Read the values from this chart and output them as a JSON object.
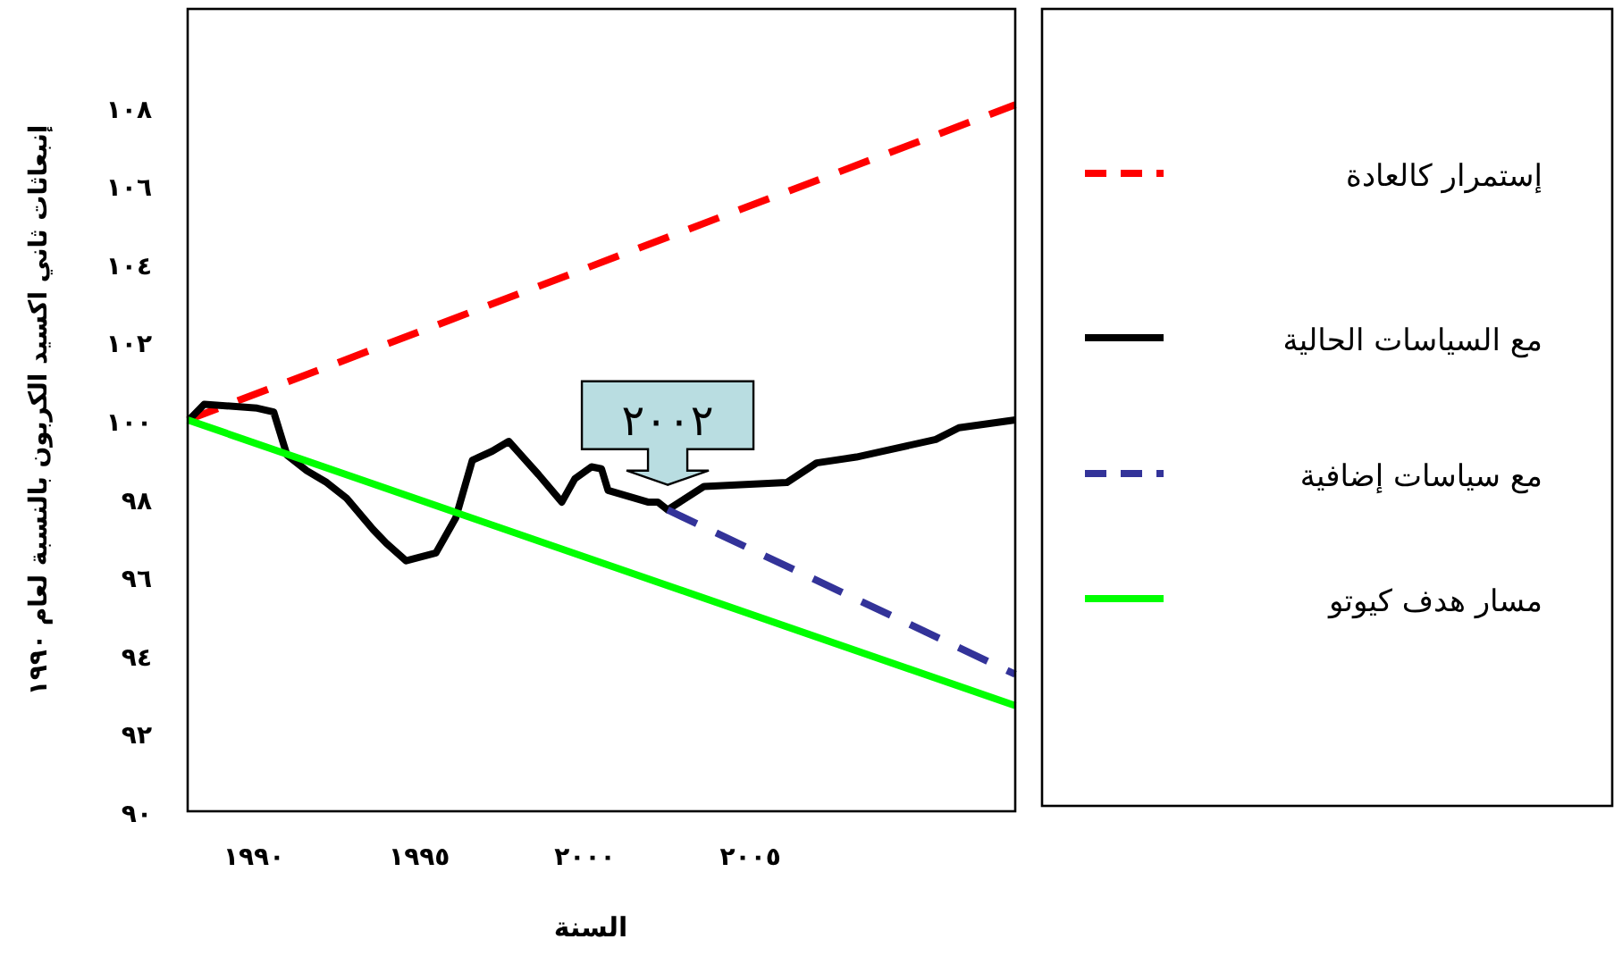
{
  "chart_data": {
    "type": "line",
    "xlabel": "السنة",
    "ylabel": "إنبعاثات ثاني اكسيد الكربون بالنسبة لعام ١٩٩٠",
    "xlim": [
      1988,
      2013
    ],
    "ylim": [
      90,
      110.5
    ],
    "xticks": [
      {
        "value": 1990,
        "label": "١٩٩٠"
      },
      {
        "value": 1995,
        "label": "١٩٩٥"
      },
      {
        "value": 2000,
        "label": "٢٠٠٠"
      },
      {
        "value": 2005,
        "label": "٢٠٠٥"
      }
    ],
    "yticks": [
      {
        "value": 90,
        "label": "٩٠"
      },
      {
        "value": 92,
        "label": "٩٢"
      },
      {
        "value": 94,
        "label": "٩٤"
      },
      {
        "value": 96,
        "label": "٩٦"
      },
      {
        "value": 98,
        "label": "٩٨"
      },
      {
        "value": 100,
        "label": "١٠٠"
      },
      {
        "value": 102,
        "label": "١٠٢"
      },
      {
        "value": 104,
        "label": "١٠٤"
      },
      {
        "value": 106,
        "label": "١٠٦"
      },
      {
        "value": 108,
        "label": "١٠٨"
      }
    ],
    "grid": false,
    "legend": "right",
    "marker": "none",
    "series": [
      {
        "name": "إستمرار كالعادة",
        "color": "#ff0000",
        "line_style": "dashed",
        "x": [
          1988,
          2013
        ],
        "values": [
          100,
          108.05
        ]
      },
      {
        "name": "مع السياسات الحالية",
        "color": "#000000",
        "line_style": "solid",
        "x": [
          1988.04,
          1988.5,
          1990.1,
          1990.6,
          1991.0,
          1991.6,
          1992.2,
          1992.8,
          1993.6,
          1994.0,
          1994.6,
          1995.5,
          1996.1,
          1996.6,
          1997.2,
          1997.7,
          1998.6,
          1999.3,
          1999.7,
          2000.2,
          2000.5,
          2000.7,
          2001.9,
          2002.2,
          2002.5,
          2003.6,
          2006.1,
          2007.0,
          2008.2,
          2010.6,
          2011.3,
          2013.0
        ],
        "values": [
          100.0,
          100.4,
          100.3,
          100.2,
          99.1,
          98.7,
          98.4,
          98.0,
          97.2,
          96.85,
          96.4,
          96.6,
          97.5,
          98.97,
          99.2,
          99.45,
          98.6,
          97.9,
          98.5,
          98.8,
          98.75,
          98.2,
          97.9,
          97.9,
          97.7,
          98.3,
          98.4,
          98.9,
          99.05,
          99.5,
          99.8,
          100.0
        ]
      },
      {
        "name": "مع سياسات إضافية",
        "color": "#333399",
        "line_style": "dashed",
        "x": [
          2002.5,
          2013
        ],
        "values": [
          97.7,
          93.5
        ]
      },
      {
        "name": "مسار هدف كيوتو",
        "color": "#00ff00",
        "line_style": "solid",
        "x": [
          1988,
          2013
        ],
        "values": [
          100,
          92.7
        ]
      }
    ],
    "annotations": [
      {
        "text": "٢٠٠٢",
        "x": 2002.5,
        "y": 97.7
      }
    ]
  }
}
